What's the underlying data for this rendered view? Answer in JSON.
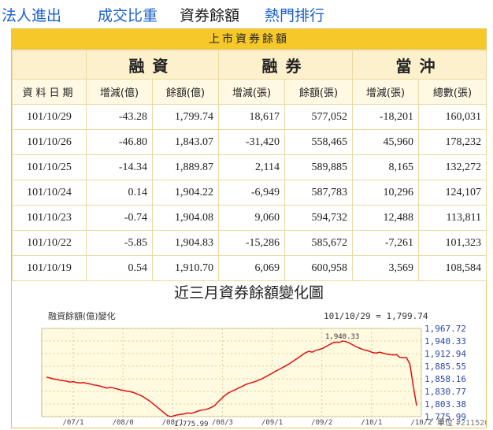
{
  "nav": {
    "items": [
      "法人進出",
      "成交比重",
      "資券餘額",
      "熱門排行"
    ]
  },
  "panel": {
    "title": "上市資券餘額",
    "groups": [
      "融資",
      "融券",
      "當沖"
    ],
    "columns": [
      "資料日期",
      "增減(億)",
      "餘額(億)",
      "增減(張)",
      "餘額(張)",
      "增減(張)",
      "總數(張)"
    ],
    "rows": [
      [
        "101/10/29",
        "-43.28",
        "1,799.74",
        "18,617",
        "577,052",
        "-18,201",
        "160,031"
      ],
      [
        "101/10/26",
        "-46.80",
        "1,843.07",
        "-31,420",
        "558,465",
        "45,960",
        "178,232"
      ],
      [
        "101/10/25",
        "-14.34",
        "1,889.87",
        "2,114",
        "589,885",
        "8,165",
        "132,272"
      ],
      [
        "101/10/24",
        "0.14",
        "1,904.22",
        "-6,949",
        "587,783",
        "10,296",
        "124,107"
      ],
      [
        "101/10/23",
        "-0.74",
        "1,904.08",
        "9,060",
        "594,732",
        "12,488",
        "113,811"
      ],
      [
        "101/10/22",
        "-5.85",
        "1,904.83",
        "-15,286",
        "585,672",
        "-7,261",
        "101,323"
      ],
      [
        "101/10/19",
        "0.54",
        "1,910.70",
        "6,069",
        "600,958",
        "3,569",
        "108,584"
      ]
    ]
  },
  "chart_title": "近三月資券餘額變化圖",
  "chart_data": {
    "type": "line",
    "title": "融資餘額(億)變化",
    "annotation_latest": "101/10/29 = 1,799.74",
    "ylabels": [
      "1,967.72",
      "1,940.33",
      "1,912.94",
      "1,885.55",
      "1,858.16",
      "1,830.77",
      "1,803.38",
      "1,775.99"
    ],
    "ylim": [
      1775.99,
      1967.72
    ],
    "xlabels": [
      "/07/1",
      "/08/0",
      "/08/1",
      "/08/3",
      "/09/1",
      "/09/2",
      "/10/1",
      "/10/2"
    ],
    "min_label": "1,775.99",
    "max_label": "1,940.33",
    "values": [
      1862,
      1860,
      1858,
      1857,
      1855,
      1854,
      1853,
      1851,
      1852,
      1850,
      1849,
      1850,
      1848,
      1847,
      1845,
      1844,
      1842,
      1840,
      1838,
      1840,
      1838,
      1836,
      1834,
      1833,
      1831,
      1830,
      1828,
      1825,
      1822,
      1818,
      1813,
      1808,
      1802,
      1796,
      1790,
      1784,
      1778,
      1775.99,
      1778,
      1780,
      1781,
      1782,
      1784,
      1783,
      1785,
      1788,
      1790,
      1791,
      1793,
      1796,
      1800,
      1808,
      1815,
      1822,
      1827,
      1831,
      1834,
      1838,
      1841,
      1845,
      1848,
      1850,
      1852,
      1855,
      1858,
      1862,
      1866,
      1870,
      1874,
      1878,
      1882,
      1886,
      1890,
      1895,
      1900,
      1905,
      1910,
      1915,
      1918,
      1916,
      1920,
      1922,
      1924,
      1928,
      1932,
      1936,
      1938,
      1937,
      1940.33,
      1939,
      1936,
      1932,
      1928,
      1925,
      1922,
      1920,
      1918,
      1915,
      1914,
      1916,
      1914,
      1912,
      1911,
      1910,
      1910.7,
      1904.83,
      1904.08,
      1904.22,
      1889.87,
      1843.07,
      1799.74
    ]
  },
  "watermark": "單位",
  "watermark_code": "#211520"
}
